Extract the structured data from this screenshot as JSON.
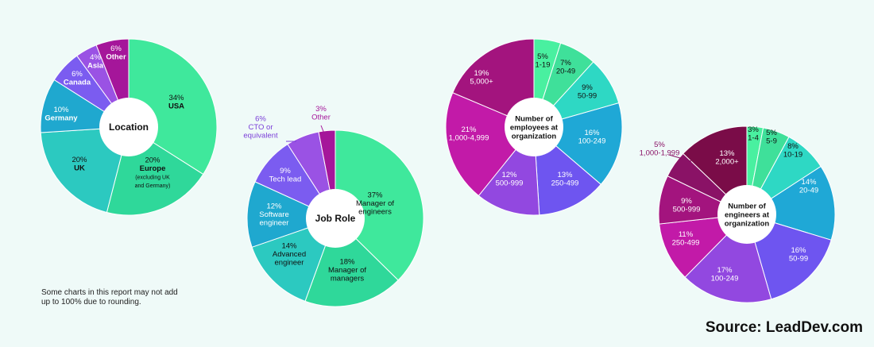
{
  "footnote": "Some charts in this report may not add up to 100% due to rounding.",
  "source": "Source: LeadDev.com",
  "chart_data": [
    {
      "type": "pie",
      "title": "Location",
      "categories": [
        "USA",
        "Europe",
        "UK",
        "Germany",
        "Canada",
        "Asia",
        "Other"
      ],
      "values": [
        34,
        20,
        20,
        10,
        6,
        4,
        6
      ],
      "labels": [
        {
          "pct": "34%",
          "name": "USA"
        },
        {
          "pct": "20%",
          "name": "Europe",
          "sub": [
            "(excluding UK",
            "and Germany)"
          ]
        },
        {
          "pct": "20%",
          "name": "UK"
        },
        {
          "pct": "10%",
          "name": "Germany"
        },
        {
          "pct": "6%",
          "name": "Canada"
        },
        {
          "pct": "4%",
          "name": "Asia"
        },
        {
          "pct": "6%",
          "name": "Other"
        }
      ],
      "colors": [
        "#3fe89c",
        "#2fd89a",
        "#2cc9c0",
        "#1fa8cf",
        "#7b5cf0",
        "#9a52e4",
        "#a5169a"
      ]
    },
    {
      "type": "pie",
      "title": "Job Role",
      "categories": [
        "Manager of engineers",
        "Manager of managers",
        "Advanced engineer",
        "Software engineer",
        "Tech lead",
        "CTO or equivalent",
        "Other"
      ],
      "values": [
        37,
        18,
        14,
        12,
        9,
        6,
        3
      ],
      "labels": [
        {
          "pct": "37%",
          "name": "Manager of engineers"
        },
        {
          "pct": "18%",
          "name": "Manager of managers"
        },
        {
          "pct": "14%",
          "name": "Advanced engineer"
        },
        {
          "pct": "12%",
          "name": "Software engineer"
        },
        {
          "pct": "9%",
          "name": "Tech lead"
        },
        {
          "pct": "6%",
          "name": "CTO or equivalent"
        },
        {
          "pct": "3%",
          "name": "Other"
        }
      ],
      "colors": [
        "#3fe89c",
        "#2fd89a",
        "#2cc9c0",
        "#1fa8cf",
        "#7b5cf0",
        "#9a52e4",
        "#a5169a"
      ]
    },
    {
      "type": "pie",
      "title": "Number of employees at organization",
      "categories": [
        "1-19",
        "20-49",
        "50-99",
        "100-249",
        "250-499",
        "500-999",
        "1,000-4,999",
        "5,000+"
      ],
      "values": [
        5,
        7,
        9,
        16,
        13,
        12,
        21,
        19
      ],
      "labels": [
        {
          "pct": "5%",
          "name": "1-19"
        },
        {
          "pct": "7%",
          "name": "20-49"
        },
        {
          "pct": "9%",
          "name": "50-99"
        },
        {
          "pct": "16%",
          "name": "100-249"
        },
        {
          "pct": "13%",
          "name": "250-499"
        },
        {
          "pct": "12%",
          "name": "500-999"
        },
        {
          "pct": "21%",
          "name": "1,000-4,999"
        },
        {
          "pct": "19%",
          "name": "5,000+"
        }
      ],
      "colors": [
        "#49f0a0",
        "#3fe09a",
        "#2ed8c4",
        "#1fa8d6",
        "#6e55f0",
        "#9248e0",
        "#c21aa8",
        "#a3147e"
      ]
    },
    {
      "type": "pie",
      "title": "Number of engineers at organization",
      "categories": [
        "1-4",
        "5-9",
        "10-19",
        "20-49",
        "50-99",
        "100-249",
        "250-499",
        "500-999",
        "1,000-1,999",
        "2,000+"
      ],
      "values": [
        3,
        5,
        8,
        14,
        16,
        17,
        11,
        9,
        5,
        13
      ],
      "labels": [
        {
          "pct": "3%",
          "name": "1-4"
        },
        {
          "pct": "5%",
          "name": "5-9"
        },
        {
          "pct": "8%",
          "name": "10-19"
        },
        {
          "pct": "14%",
          "name": "20-49"
        },
        {
          "pct": "16%",
          "name": "50-99"
        },
        {
          "pct": "17%",
          "name": "100-249"
        },
        {
          "pct": "11%",
          "name": "250-499"
        },
        {
          "pct": "9%",
          "name": "500-999"
        },
        {
          "pct": "5%",
          "name": "1,000-1,999"
        },
        {
          "pct": "13%",
          "name": "2,000+"
        }
      ],
      "colors": [
        "#49f0a0",
        "#3fe09a",
        "#2ed8c4",
        "#1fa8d6",
        "#6e55f0",
        "#9248e0",
        "#c21aa8",
        "#a3147e",
        "#8a1266",
        "#7a0c48"
      ]
    }
  ]
}
